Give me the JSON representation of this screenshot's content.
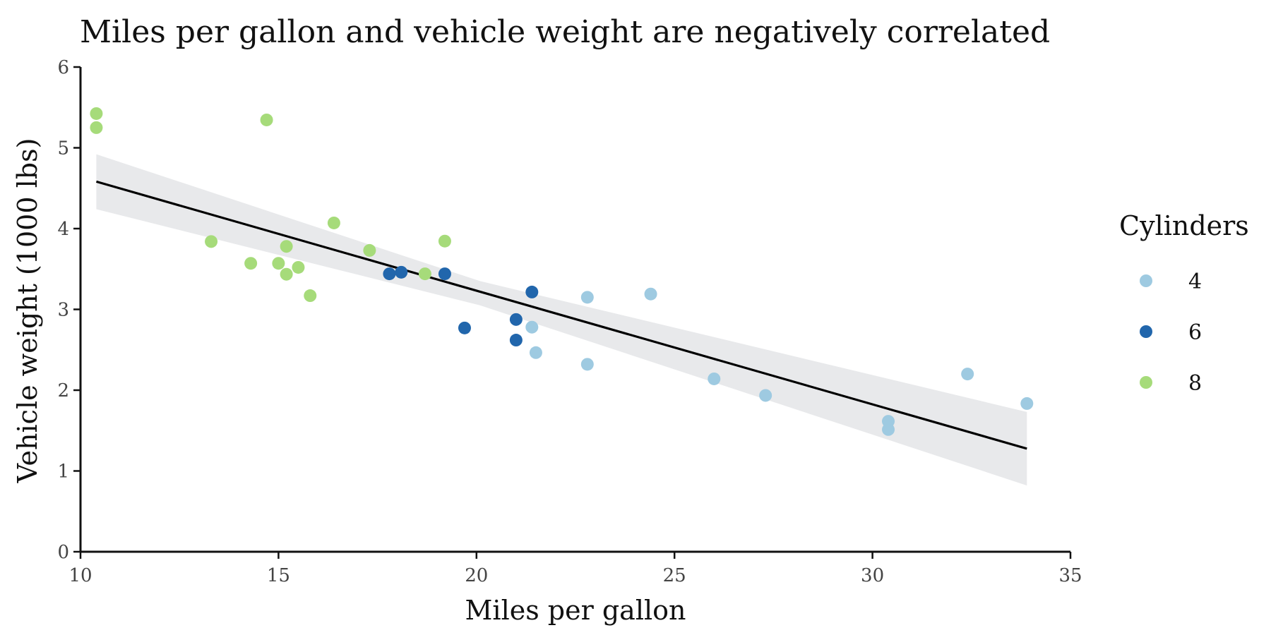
{
  "chart_data": {
    "type": "scatter",
    "title": "Miles per gallon and vehicle weight are negatively correlated",
    "xlabel": "Miles per gallon",
    "ylabel": "Vehicle weight (1000 lbs)",
    "xlim": [
      10,
      35
    ],
    "ylim": [
      0,
      6
    ],
    "x_ticks": [
      "10",
      "15",
      "20",
      "25",
      "30",
      "35"
    ],
    "y_ticks": [
      "0",
      "1",
      "2",
      "3",
      "4",
      "5",
      "6"
    ],
    "x_tick_values": [
      10,
      15,
      20,
      25,
      30,
      35
    ],
    "y_tick_values": [
      0,
      1,
      2,
      3,
      4,
      5,
      6
    ],
    "grid": false,
    "legend": {
      "title": "Cylinders",
      "position": "right",
      "items": [
        {
          "label": "4",
          "color": "#9ecae1"
        },
        {
          "label": "6",
          "color": "#2166ac"
        },
        {
          "label": "8",
          "color": "#a6db7a"
        }
      ]
    },
    "series": [
      {
        "name": "4",
        "color": "#9ecae1",
        "points": [
          {
            "x": 22.8,
            "y": 2.32
          },
          {
            "x": 24.4,
            "y": 3.19
          },
          {
            "x": 22.8,
            "y": 3.15
          },
          {
            "x": 32.4,
            "y": 2.2
          },
          {
            "x": 30.4,
            "y": 1.615
          },
          {
            "x": 33.9,
            "y": 1.835
          },
          {
            "x": 21.5,
            "y": 2.465
          },
          {
            "x": 27.3,
            "y": 1.935
          },
          {
            "x": 26.0,
            "y": 2.14
          },
          {
            "x": 30.4,
            "y": 1.513
          },
          {
            "x": 21.4,
            "y": 2.78
          }
        ]
      },
      {
        "name": "6",
        "color": "#2166ac",
        "points": [
          {
            "x": 21.0,
            "y": 2.62
          },
          {
            "x": 21.0,
            "y": 2.875
          },
          {
            "x": 21.4,
            "y": 3.215
          },
          {
            "x": 18.1,
            "y": 3.46
          },
          {
            "x": 19.2,
            "y": 3.44
          },
          {
            "x": 17.8,
            "y": 3.44
          },
          {
            "x": 19.7,
            "y": 2.77
          }
        ]
      },
      {
        "name": "8",
        "color": "#a6db7a",
        "points": [
          {
            "x": 18.7,
            "y": 3.44
          },
          {
            "x": 14.3,
            "y": 3.57
          },
          {
            "x": 16.4,
            "y": 4.07
          },
          {
            "x": 17.3,
            "y": 3.73
          },
          {
            "x": 15.2,
            "y": 3.78
          },
          {
            "x": 10.4,
            "y": 5.25
          },
          {
            "x": 10.4,
            "y": 5.424
          },
          {
            "x": 14.7,
            "y": 5.345
          },
          {
            "x": 15.5,
            "y": 3.52
          },
          {
            "x": 15.2,
            "y": 3.435
          },
          {
            "x": 13.3,
            "y": 3.84
          },
          {
            "x": 19.2,
            "y": 3.845
          },
          {
            "x": 15.8,
            "y": 3.17
          },
          {
            "x": 15.0,
            "y": 3.57
          }
        ]
      }
    ],
    "trend_line": {
      "color": "#000000",
      "x": [
        10.4,
        33.9
      ],
      "y": [
        4.582,
        1.276
      ]
    },
    "confidence_band": {
      "color": "#e8e9eb",
      "x": [
        10.4,
        20.09,
        33.9
      ],
      "lower": [
        4.24,
        3.05,
        0.82
      ],
      "upper": [
        4.92,
        3.35,
        1.73
      ]
    }
  }
}
